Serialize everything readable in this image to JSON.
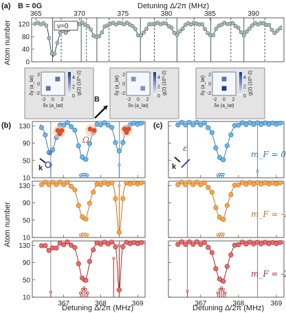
{
  "chart_data": [
    {
      "id": "a",
      "type": "scatter",
      "panel_label": "(a)",
      "title": "B = 0G",
      "xlabel": "Detuning Δ/2π (MHz)",
      "ylabel": "Atom number",
      "xlim": [
        364.5,
        393.5
      ],
      "ylim": [
        0,
        140
      ],
      "xticks": [
        365,
        370,
        375,
        380,
        385,
        390
      ],
      "yticks": [
        0,
        40,
        80,
        120
      ],
      "inset_label": "ν=0",
      "colors": {
        "marker": "#a9bdb9",
        "edge": "#4c6360",
        "line": "#2b4a46"
      },
      "dips": [
        {
          "center": 366.9,
          "depth": 95,
          "width": 0.45
        },
        {
          "center": 367.5,
          "depth": 40,
          "width": 0.5
        },
        {
          "center": 368.5,
          "depth": 30,
          "width": 0.4
        },
        {
          "center": 372.0,
          "depth": 45,
          "width": 0.8
        },
        {
          "center": 377.0,
          "depth": 40,
          "width": 0.7
        },
        {
          "center": 381.2,
          "depth": 35,
          "width": 0.7
        },
        {
          "center": 385.1,
          "depth": 40,
          "width": 0.7
        },
        {
          "center": 388.9,
          "depth": 35,
          "width": 0.7
        },
        {
          "center": 392.5,
          "depth": 30,
          "width": 0.6
        }
      ],
      "solid_lines": [
        366.9,
        370.2,
        372.0,
        377.0,
        381.2,
        385.1,
        388.9
      ],
      "dashed_lines": [
        367.9,
        370.8,
        373.4,
        378.6,
        383.2,
        387.4,
        391.3
      ]
    },
    {
      "id": "insets",
      "type": "heatmap",
      "xlabel": "δx (a_lat)",
      "ylabel": "δy (a_lat)",
      "colorbar_label": "g(2) (10^-2)",
      "colorbar_ticks": [
        0,
        2,
        4
      ],
      "xticks": [
        -2,
        0,
        2
      ],
      "yticks": [
        -2,
        0,
        2
      ],
      "field_label": "B",
      "maps": [
        {
          "cells": [
            {
              "x": 1,
              "y": 1,
              "v": 3.2
            },
            {
              "x": -1,
              "y": -1,
              "v": 3.2
            }
          ]
        },
        {
          "cells": [
            {
              "x": -1,
              "y": 1,
              "v": 2.4
            },
            {
              "x": 1,
              "y": -1,
              "v": 2.4
            }
          ]
        },
        {
          "cells": [
            {
              "x": 0,
              "y": 1,
              "v": 3.2
            },
            {
              "x": 0,
              "y": -1,
              "v": 4.6
            }
          ]
        }
      ]
    },
    {
      "id": "b",
      "type": "scatter",
      "panel_label": "(b)",
      "xlabel": "Detuning Δ/2π (MHz)",
      "ylabel": "Atom number",
      "xlim": [
        366.15,
        369.2
      ],
      "xticks": [
        367,
        368,
        369
      ],
      "ylim": [
        10,
        140
      ],
      "yticks": [
        10,
        50,
        90,
        130
      ],
      "annotations": [
        "Ω",
        "ε",
        "k"
      ],
      "vlines": [
        366.65,
        368.5
      ],
      "rows": [
        {
          "mF": "0",
          "color": "#6fb6e8",
          "edge": "#2e79b5",
          "dips": [
            {
              "center": 366.65,
              "depth": 70,
              "width": 0.16
            },
            {
              "center": 367.55,
              "depth": 85,
              "width": 0.2
            },
            {
              "center": 368.5,
              "depth": 65,
              "width": 0.15
            }
          ],
          "lines": [
            {
              "x": 366.65,
              "h": 30
            },
            {
              "x": 367.45,
              "h": 6
            },
            {
              "x": 367.5,
              "h": 8
            },
            {
              "x": 367.55,
              "h": 8
            },
            {
              "x": 367.6,
              "h": 8
            },
            {
              "x": 367.65,
              "h": 6
            },
            {
              "x": 368.5,
              "h": 30
            }
          ]
        },
        {
          "mF": "-1",
          "color": "#f7a64a",
          "edge": "#c6701e",
          "dips": [
            {
              "center": 367.55,
              "depth": 85,
              "width": 0.2
            },
            {
              "center": 368.5,
              "depth": 115,
              "width": 0.09
            }
          ],
          "lines": [
            {
              "x": 367.45,
              "h": 6
            },
            {
              "x": 367.5,
              "h": 8
            },
            {
              "x": 367.55,
              "h": 8
            },
            {
              "x": 367.6,
              "h": 8
            },
            {
              "x": 367.65,
              "h": 6
            },
            {
              "x": 368.5,
              "h": 120
            }
          ]
        },
        {
          "mF": "-2",
          "color": "#ec6b6b",
          "edge": "#a82828",
          "dips": [
            {
              "center": 366.65,
              "depth": 15,
              "width": 0.2
            },
            {
              "center": 367.55,
              "depth": 90,
              "width": 0.18
            },
            {
              "center": 368.5,
              "depth": 110,
              "width": 0.06
            }
          ],
          "lines": [
            {
              "x": 366.65,
              "h": 12
            },
            {
              "x": 367.45,
              "h": 10
            },
            {
              "x": 367.5,
              "h": 18
            },
            {
              "x": 367.55,
              "h": 22
            },
            {
              "x": 367.6,
              "h": 18
            },
            {
              "x": 367.65,
              "h": 10
            },
            {
              "x": 368.35,
              "h": 90
            },
            {
              "x": 368.5,
              "h": 120
            }
          ]
        }
      ]
    },
    {
      "id": "c",
      "type": "scatter",
      "panel_label": "(c)",
      "xlabel": "Detuning Δ/2π (MHz)",
      "xlim": [
        366.15,
        369.2
      ],
      "xticks": [
        367,
        368,
        369
      ],
      "ylim": [
        10,
        140
      ],
      "yticks": [
        10,
        50,
        90,
        130
      ],
      "annotations": [
        "ε",
        "k"
      ],
      "vlines": [
        366.65,
        368.5
      ],
      "rows": [
        {
          "mF": "0",
          "label": "m_F = 0",
          "color": "#6fb6e8",
          "edge": "#2e79b5",
          "dips": [
            {
              "center": 367.55,
              "depth": 85,
              "width": 0.22
            }
          ],
          "lines": [
            {
              "x": 367.45,
              "h": 6
            },
            {
              "x": 367.5,
              "h": 8
            },
            {
              "x": 367.55,
              "h": 8
            },
            {
              "x": 367.6,
              "h": 8
            },
            {
              "x": 368.5,
              "h": 15
            }
          ]
        },
        {
          "mF": "-1",
          "label": "m_F = -1",
          "color": "#f7a64a",
          "edge": "#c6701e",
          "dips": [
            {
              "center": 367.55,
              "depth": 85,
              "width": 0.22
            }
          ],
          "lines": [
            {
              "x": 367.45,
              "h": 6
            },
            {
              "x": 367.5,
              "h": 8
            },
            {
              "x": 367.55,
              "h": 8
            },
            {
              "x": 367.6,
              "h": 8
            }
          ]
        },
        {
          "mF": "-2",
          "label": "m_F = -2",
          "color": "#ec6b6b",
          "edge": "#a82828",
          "dips": [
            {
              "center": 367.55,
              "depth": 90,
              "width": 0.22
            }
          ],
          "lines": [
            {
              "x": 366.65,
              "h": 14
            },
            {
              "x": 367.45,
              "h": 10
            },
            {
              "x": 367.5,
              "h": 18
            },
            {
              "x": 367.55,
              "h": 22
            },
            {
              "x": 367.6,
              "h": 18
            },
            {
              "x": 367.65,
              "h": 10
            }
          ]
        }
      ]
    }
  ]
}
